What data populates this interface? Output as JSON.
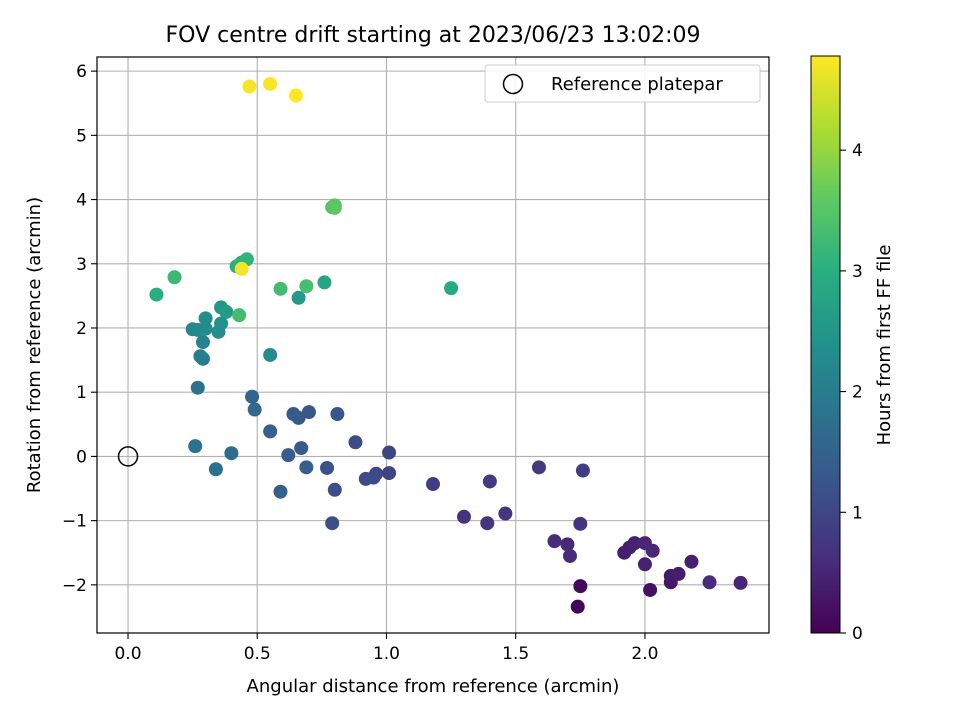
{
  "chart_data": {
    "type": "scatter",
    "title": "FOV centre drift starting at 2023/06/23 13:02:09",
    "xlabel": "Angular distance from reference (arcmin)",
    "ylabel": "Rotation from reference (arcmin)",
    "xlim": [
      -0.12,
      2.48
    ],
    "ylim": [
      -2.75,
      6.22
    ],
    "xticks": [
      "0.0",
      "0.5",
      "1.0",
      "1.5",
      "2.0"
    ],
    "xtick_values": [
      0,
      0.5,
      1.0,
      1.5,
      2.0
    ],
    "yticks": [
      "−2",
      "−1",
      "0",
      "1",
      "2",
      "3",
      "4",
      "5",
      "6"
    ],
    "ytick_values": [
      -2,
      -1,
      0,
      1,
      2,
      3,
      4,
      5,
      6
    ],
    "grid": true,
    "colormap": "viridis",
    "colorbar": {
      "label": "Hours from first FF file",
      "range": [
        0,
        4.78
      ],
      "ticks": [
        "0",
        "1",
        "2",
        "3",
        "4"
      ],
      "tick_values": [
        0,
        1,
        2,
        3,
        4
      ]
    },
    "legend": {
      "placement": "top-right",
      "label": "Reference platepar"
    },
    "reference_point": {
      "x": 0,
      "y": 0
    },
    "points": [
      {
        "x": 1.74,
        "y": -2.34,
        "c": 0.05
      },
      {
        "x": 1.75,
        "y": -2.02,
        "c": 0.12
      },
      {
        "x": 2.02,
        "y": -2.08,
        "c": 0.2
      },
      {
        "x": 2.1,
        "y": -1.96,
        "c": 0.3
      },
      {
        "x": 2.1,
        "y": -1.86,
        "c": 0.35
      },
      {
        "x": 2.13,
        "y": -1.83,
        "c": 0.4
      },
      {
        "x": 2.18,
        "y": -1.64,
        "c": 0.42
      },
      {
        "x": 2.0,
        "y": -1.68,
        "c": 0.45
      },
      {
        "x": 2.25,
        "y": -1.96,
        "c": 0.6
      },
      {
        "x": 2.37,
        "y": -1.97,
        "c": 0.5
      },
      {
        "x": 1.92,
        "y": -1.5,
        "c": 0.4
      },
      {
        "x": 1.94,
        "y": -1.42,
        "c": 0.42
      },
      {
        "x": 1.96,
        "y": -1.35,
        "c": 0.45
      },
      {
        "x": 2.0,
        "y": -1.35,
        "c": 0.5
      },
      {
        "x": 2.03,
        "y": -1.47,
        "c": 0.52
      },
      {
        "x": 1.7,
        "y": -1.37,
        "c": 0.55
      },
      {
        "x": 1.71,
        "y": -1.55,
        "c": 0.58
      },
      {
        "x": 1.65,
        "y": -1.32,
        "c": 0.6
      },
      {
        "x": 1.75,
        "y": -1.05,
        "c": 0.7
      },
      {
        "x": 1.76,
        "y": -0.22,
        "c": 0.85
      },
      {
        "x": 1.59,
        "y": -0.17,
        "c": 0.8
      },
      {
        "x": 1.46,
        "y": -0.89,
        "c": 0.75
      },
      {
        "x": 1.39,
        "y": -1.04,
        "c": 0.72
      },
      {
        "x": 1.3,
        "y": -0.94,
        "c": 0.7
      },
      {
        "x": 1.4,
        "y": -0.39,
        "c": 0.8
      },
      {
        "x": 1.18,
        "y": -0.43,
        "c": 0.85
      },
      {
        "x": 1.01,
        "y": -0.26,
        "c": 0.95
      },
      {
        "x": 1.01,
        "y": 0.06,
        "c": 1.0
      },
      {
        "x": 0.96,
        "y": -0.27,
        "c": 1.05
      },
      {
        "x": 0.95,
        "y": -0.33,
        "c": 1.08
      },
      {
        "x": 0.92,
        "y": -0.35,
        "c": 1.1
      },
      {
        "x": 0.88,
        "y": 0.22,
        "c": 1.1
      },
      {
        "x": 0.8,
        "y": -0.52,
        "c": 1.15
      },
      {
        "x": 0.79,
        "y": -1.04,
        "c": 1.15
      },
      {
        "x": 0.77,
        "y": -0.18,
        "c": 1.2
      },
      {
        "x": 0.81,
        "y": 0.66,
        "c": 1.25
      },
      {
        "x": 0.7,
        "y": 0.69,
        "c": 1.3
      },
      {
        "x": 0.66,
        "y": 0.6,
        "c": 1.3
      },
      {
        "x": 0.64,
        "y": 0.66,
        "c": 1.35
      },
      {
        "x": 0.67,
        "y": 0.13,
        "c": 1.35
      },
      {
        "x": 0.69,
        "y": -0.17,
        "c": 1.4
      },
      {
        "x": 0.62,
        "y": 0.02,
        "c": 1.4
      },
      {
        "x": 0.59,
        "y": -0.55,
        "c": 1.45
      },
      {
        "x": 0.55,
        "y": 0.39,
        "c": 1.5
      },
      {
        "x": 0.48,
        "y": 0.93,
        "c": 1.55
      },
      {
        "x": 0.49,
        "y": 0.73,
        "c": 1.6
      },
      {
        "x": 0.4,
        "y": 0.05,
        "c": 1.65
      },
      {
        "x": 0.34,
        "y": -0.2,
        "c": 1.75
      },
      {
        "x": 0.26,
        "y": 0.16,
        "c": 1.8
      },
      {
        "x": 0.27,
        "y": 1.07,
        "c": 1.8
      },
      {
        "x": 0.29,
        "y": 1.52,
        "c": 2.0
      },
      {
        "x": 0.28,
        "y": 1.56,
        "c": 2.0
      },
      {
        "x": 0.29,
        "y": 1.78,
        "c": 2.1
      },
      {
        "x": 0.25,
        "y": 1.98,
        "c": 2.2
      },
      {
        "x": 0.27,
        "y": 1.97,
        "c": 2.25
      },
      {
        "x": 0.3,
        "y": 1.99,
        "c": 2.3
      },
      {
        "x": 0.3,
        "y": 2.15,
        "c": 2.3
      },
      {
        "x": 0.35,
        "y": 1.94,
        "c": 2.35
      },
      {
        "x": 0.36,
        "y": 2.07,
        "c": 2.4
      },
      {
        "x": 0.36,
        "y": 2.32,
        "c": 2.5
      },
      {
        "x": 0.38,
        "y": 2.25,
        "c": 2.6
      },
      {
        "x": 0.55,
        "y": 1.58,
        "c": 2.3
      },
      {
        "x": 0.66,
        "y": 2.47,
        "c": 2.6
      },
      {
        "x": 0.76,
        "y": 2.71,
        "c": 2.8
      },
      {
        "x": 1.25,
        "y": 2.62,
        "c": 2.9
      },
      {
        "x": 0.42,
        "y": 2.96,
        "c": 3.0
      },
      {
        "x": 0.43,
        "y": 2.98,
        "c": 3.0
      },
      {
        "x": 0.44,
        "y": 3.02,
        "c": 3.05
      },
      {
        "x": 0.46,
        "y": 3.07,
        "c": 3.1
      },
      {
        "x": 0.11,
        "y": 2.52,
        "c": 3.0
      },
      {
        "x": 0.18,
        "y": 2.79,
        "c": 3.2
      },
      {
        "x": 0.43,
        "y": 2.2,
        "c": 3.3
      },
      {
        "x": 0.59,
        "y": 2.61,
        "c": 3.3
      },
      {
        "x": 0.69,
        "y": 2.65,
        "c": 3.35
      },
      {
        "x": 0.79,
        "y": 3.88,
        "c": 3.45
      },
      {
        "x": 0.8,
        "y": 3.91,
        "c": 3.5
      },
      {
        "x": 0.8,
        "y": 3.87,
        "c": 3.55
      },
      {
        "x": 0.44,
        "y": 2.92,
        "c": 4.7
      },
      {
        "x": 0.47,
        "y": 5.76,
        "c": 4.7
      },
      {
        "x": 0.55,
        "y": 5.8,
        "c": 4.75
      },
      {
        "x": 0.65,
        "y": 5.62,
        "c": 4.78
      }
    ]
  }
}
